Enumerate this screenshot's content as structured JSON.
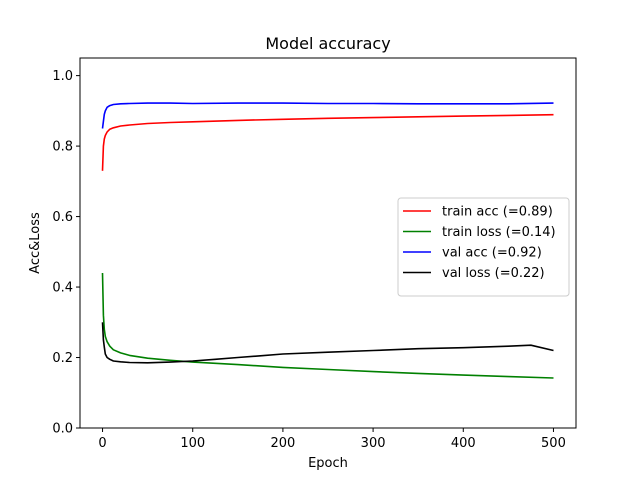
{
  "chart_data": {
    "type": "line",
    "title": "Model accuracy",
    "xlabel": "Epoch",
    "ylabel": "Acc&Loss",
    "xlim": [
      -25,
      525
    ],
    "ylim": [
      0.0,
      1.05
    ],
    "xticks": [
      0,
      100,
      200,
      300,
      400,
      500
    ],
    "yticks": [
      0.0,
      0.2,
      0.4,
      0.6,
      0.8,
      1.0
    ],
    "xtick_labels": [
      "0",
      "100",
      "200",
      "300",
      "400",
      "500"
    ],
    "ytick_labels": [
      "0.0",
      "0.2",
      "0.4",
      "0.6",
      "0.8",
      "1.0"
    ],
    "grid": false,
    "legend_position": "center-right",
    "series": [
      {
        "name": "train acc (=0.89)",
        "color": "#ff0000",
        "x": [
          0,
          1,
          2,
          3,
          5,
          8,
          12,
          20,
          30,
          50,
          75,
          100,
          150,
          200,
          250,
          300,
          350,
          400,
          450,
          500
        ],
        "y": [
          0.73,
          0.8,
          0.82,
          0.83,
          0.84,
          0.848,
          0.852,
          0.857,
          0.86,
          0.864,
          0.867,
          0.869,
          0.873,
          0.876,
          0.879,
          0.881,
          0.883,
          0.885,
          0.887,
          0.889
        ]
      },
      {
        "name": "train loss (=0.14)",
        "color": "#008000",
        "x": [
          0,
          1,
          2,
          3,
          5,
          8,
          12,
          20,
          30,
          50,
          75,
          100,
          150,
          200,
          250,
          300,
          350,
          400,
          450,
          500
        ],
        "y": [
          0.44,
          0.32,
          0.28,
          0.26,
          0.245,
          0.232,
          0.222,
          0.213,
          0.206,
          0.198,
          0.192,
          0.187,
          0.18,
          0.172,
          0.166,
          0.16,
          0.155,
          0.15,
          0.146,
          0.142
        ]
      },
      {
        "name": "val acc (=0.92)",
        "color": "#0000ff",
        "x": [
          0,
          1,
          2,
          3,
          5,
          8,
          12,
          20,
          30,
          50,
          75,
          100,
          150,
          200,
          250,
          300,
          350,
          400,
          450,
          500
        ],
        "y": [
          0.85,
          0.87,
          0.89,
          0.9,
          0.91,
          0.915,
          0.918,
          0.92,
          0.921,
          0.922,
          0.922,
          0.921,
          0.922,
          0.922,
          0.921,
          0.921,
          0.92,
          0.92,
          0.92,
          0.922
        ]
      },
      {
        "name": "val loss (=0.22)",
        "color": "#000000",
        "x": [
          0,
          1,
          2,
          3,
          5,
          8,
          12,
          20,
          30,
          50,
          75,
          100,
          125,
          150,
          175,
          200,
          250,
          300,
          350,
          400,
          450,
          475,
          500
        ],
        "y": [
          0.3,
          0.25,
          0.23,
          0.21,
          0.2,
          0.195,
          0.19,
          0.188,
          0.186,
          0.185,
          0.187,
          0.19,
          0.195,
          0.2,
          0.205,
          0.21,
          0.215,
          0.22,
          0.225,
          0.228,
          0.232,
          0.235,
          0.22
        ]
      }
    ]
  }
}
